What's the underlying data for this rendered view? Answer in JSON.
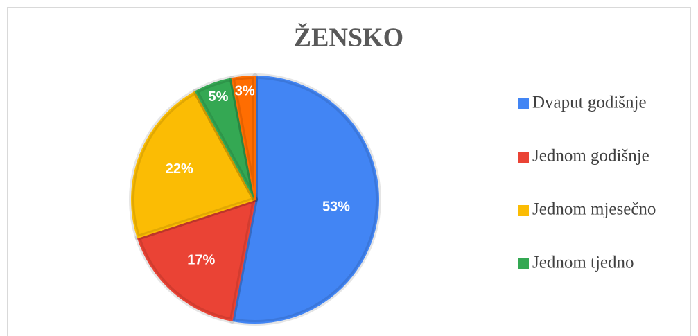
{
  "chart_data": {
    "type": "pie",
    "title": "ŽENSKO",
    "categories": [
      "Dvaput godišnje",
      "Jednom godišnje",
      "Jednom mjesečno",
      "Jednom tjedno",
      null
    ],
    "values": [
      53,
      17,
      22,
      5,
      3
    ],
    "value_labels": [
      "53%",
      "17%",
      "22%",
      "5%",
      "3%"
    ],
    "colors": [
      "#4285f4",
      "#ea4335",
      "#fbbc04",
      "#34a853",
      "#ff6d01"
    ],
    "legend": "right"
  }
}
